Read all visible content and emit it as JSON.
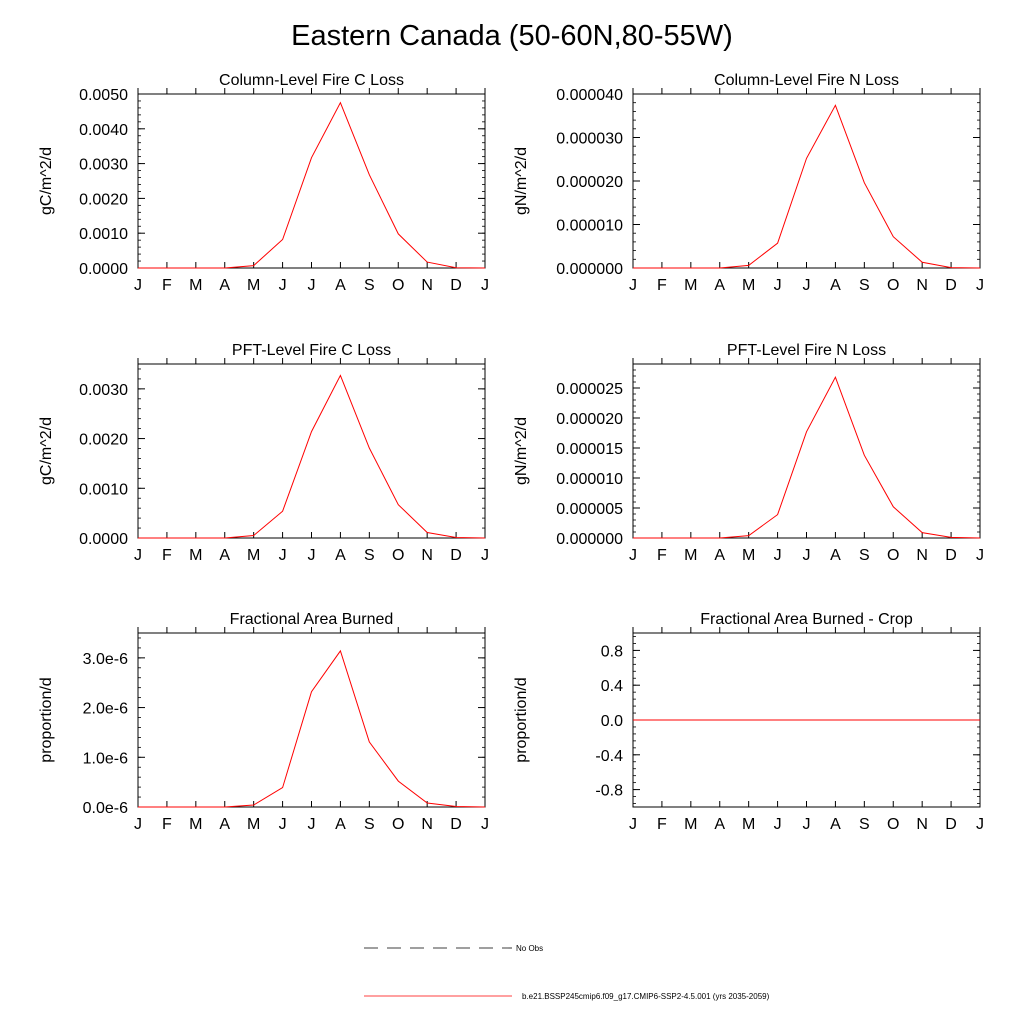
{
  "title": "Eastern Canada (50-60N,80-55W)",
  "months": [
    "J",
    "F",
    "M",
    "A",
    "M",
    "J",
    "J",
    "A",
    "S",
    "O",
    "N",
    "D",
    "J"
  ],
  "chart_data": [
    {
      "type": "line",
      "title": "Column-Level Fire C Loss",
      "ylabel": "gC/m^2/d",
      "ylim": [
        0,
        0.005
      ],
      "yticks": [
        0,
        0.001,
        0.002,
        0.003,
        0.004,
        0.005
      ],
      "ytick_labels": [
        "0.0000",
        "0.0010",
        "0.0020",
        "0.0030",
        "0.0040",
        "0.0050"
      ],
      "x": [
        "J",
        "F",
        "M",
        "A",
        "M",
        "J",
        "J",
        "A",
        "S",
        "O",
        "N",
        "D",
        "J"
      ],
      "series": [
        {
          "values": [
            0,
            0,
            0,
            0,
            7e-05,
            0.00082,
            0.00317,
            0.00475,
            0.00268,
            0.00098,
            0.00017,
            1e-05,
            0
          ]
        }
      ]
    },
    {
      "type": "line",
      "title": "Column-Level Fire N Loss",
      "ylabel": "gN/m^2/d",
      "ylim": [
        0,
        4e-05
      ],
      "yticks": [
        0,
        1e-05,
        2e-05,
        3e-05,
        4e-05
      ],
      "ytick_labels": [
        "0.000000",
        "0.000010",
        "0.000020",
        "0.000030",
        "0.000040"
      ],
      "x": [
        "J",
        "F",
        "M",
        "A",
        "M",
        "J",
        "J",
        "A",
        "S",
        "O",
        "N",
        "D",
        "J"
      ],
      "series": [
        {
          "values": [
            0,
            0,
            0,
            0,
            6e-07,
            5.7e-06,
            2.52e-05,
            3.74e-05,
            1.96e-05,
            7.2e-06,
            1.3e-06,
            1e-07,
            0
          ]
        }
      ]
    },
    {
      "type": "line",
      "title": "PFT-Level Fire C Loss",
      "ylabel": "gC/m^2/d",
      "ylim": [
        0,
        0.0035
      ],
      "yticks": [
        0,
        0.001,
        0.002,
        0.003
      ],
      "ytick_labels": [
        "0.0000",
        "0.0010",
        "0.0020",
        "0.0030"
      ],
      "x": [
        "J",
        "F",
        "M",
        "A",
        "M",
        "J",
        "J",
        "A",
        "S",
        "O",
        "N",
        "D",
        "J"
      ],
      "series": [
        {
          "values": [
            0,
            0,
            0,
            0,
            5e-05,
            0.00054,
            0.00214,
            0.00327,
            0.00181,
            0.00067,
            0.00011,
            1e-05,
            0
          ]
        }
      ]
    },
    {
      "type": "line",
      "title": "PFT-Level Fire N Loss",
      "ylabel": "gN/m^2/d",
      "ylim": [
        0,
        2.9e-05
      ],
      "yticks": [
        0,
        5e-06,
        1e-05,
        1.5e-05,
        2e-05,
        2.5e-05
      ],
      "ytick_labels": [
        "0.000000",
        "0.000005",
        "0.000010",
        "0.000015",
        "0.000020",
        "0.000025"
      ],
      "x": [
        "J",
        "F",
        "M",
        "A",
        "M",
        "J",
        "J",
        "A",
        "S",
        "O",
        "N",
        "D",
        "J"
      ],
      "series": [
        {
          "values": [
            0,
            0,
            0,
            0,
            4e-07,
            3.9e-06,
            1.77e-05,
            2.68e-05,
            1.38e-05,
            5.2e-06,
            9e-07,
            1e-07,
            0
          ]
        }
      ]
    },
    {
      "type": "line",
      "title": "Fractional Area Burned",
      "ylabel": "proportion/d",
      "ylim": [
        0,
        3.5e-06
      ],
      "yticks": [
        0,
        1e-06,
        2e-06,
        3e-06
      ],
      "ytick_labels": [
        "0.0e-6",
        "1.0e-6",
        "2.0e-6",
        "3.0e-6"
      ],
      "x": [
        "J",
        "F",
        "M",
        "A",
        "M",
        "J",
        "J",
        "A",
        "S",
        "O",
        "N",
        "D",
        "J"
      ],
      "series": [
        {
          "values": [
            0,
            0,
            0,
            0,
            4e-08,
            3.9e-07,
            2.32e-06,
            3.14e-06,
            1.31e-06,
            5.2e-07,
            8e-08,
            1e-08,
            0
          ]
        }
      ]
    },
    {
      "type": "line",
      "title": "Fractional Area Burned - Crop",
      "ylabel": "proportion/d",
      "ylim": [
        -1,
        1
      ],
      "yticks": [
        -0.8,
        -0.4,
        0,
        0.4,
        0.8
      ],
      "ytick_labels": [
        "-0.8",
        "-0.4",
        "0.0",
        "0.4",
        "0.8"
      ],
      "x": [
        "J",
        "F",
        "M",
        "A",
        "M",
        "J",
        "J",
        "A",
        "S",
        "O",
        "N",
        "D",
        "J"
      ],
      "series": [
        {
          "values": [
            0,
            0,
            0,
            0,
            0,
            0,
            0,
            0,
            0,
            0,
            0,
            0,
            0
          ]
        }
      ]
    }
  ],
  "legend": {
    "obs_label": "No Obs",
    "model_label": "b.e21.BSSP245cmip6.f09_g17.CMIP6-SSP2-4.5.001 (yrs 2035-2059)"
  },
  "colors": {
    "model_line": "#ff0000",
    "obs_line": "#000000",
    "axes": "#000000"
  }
}
